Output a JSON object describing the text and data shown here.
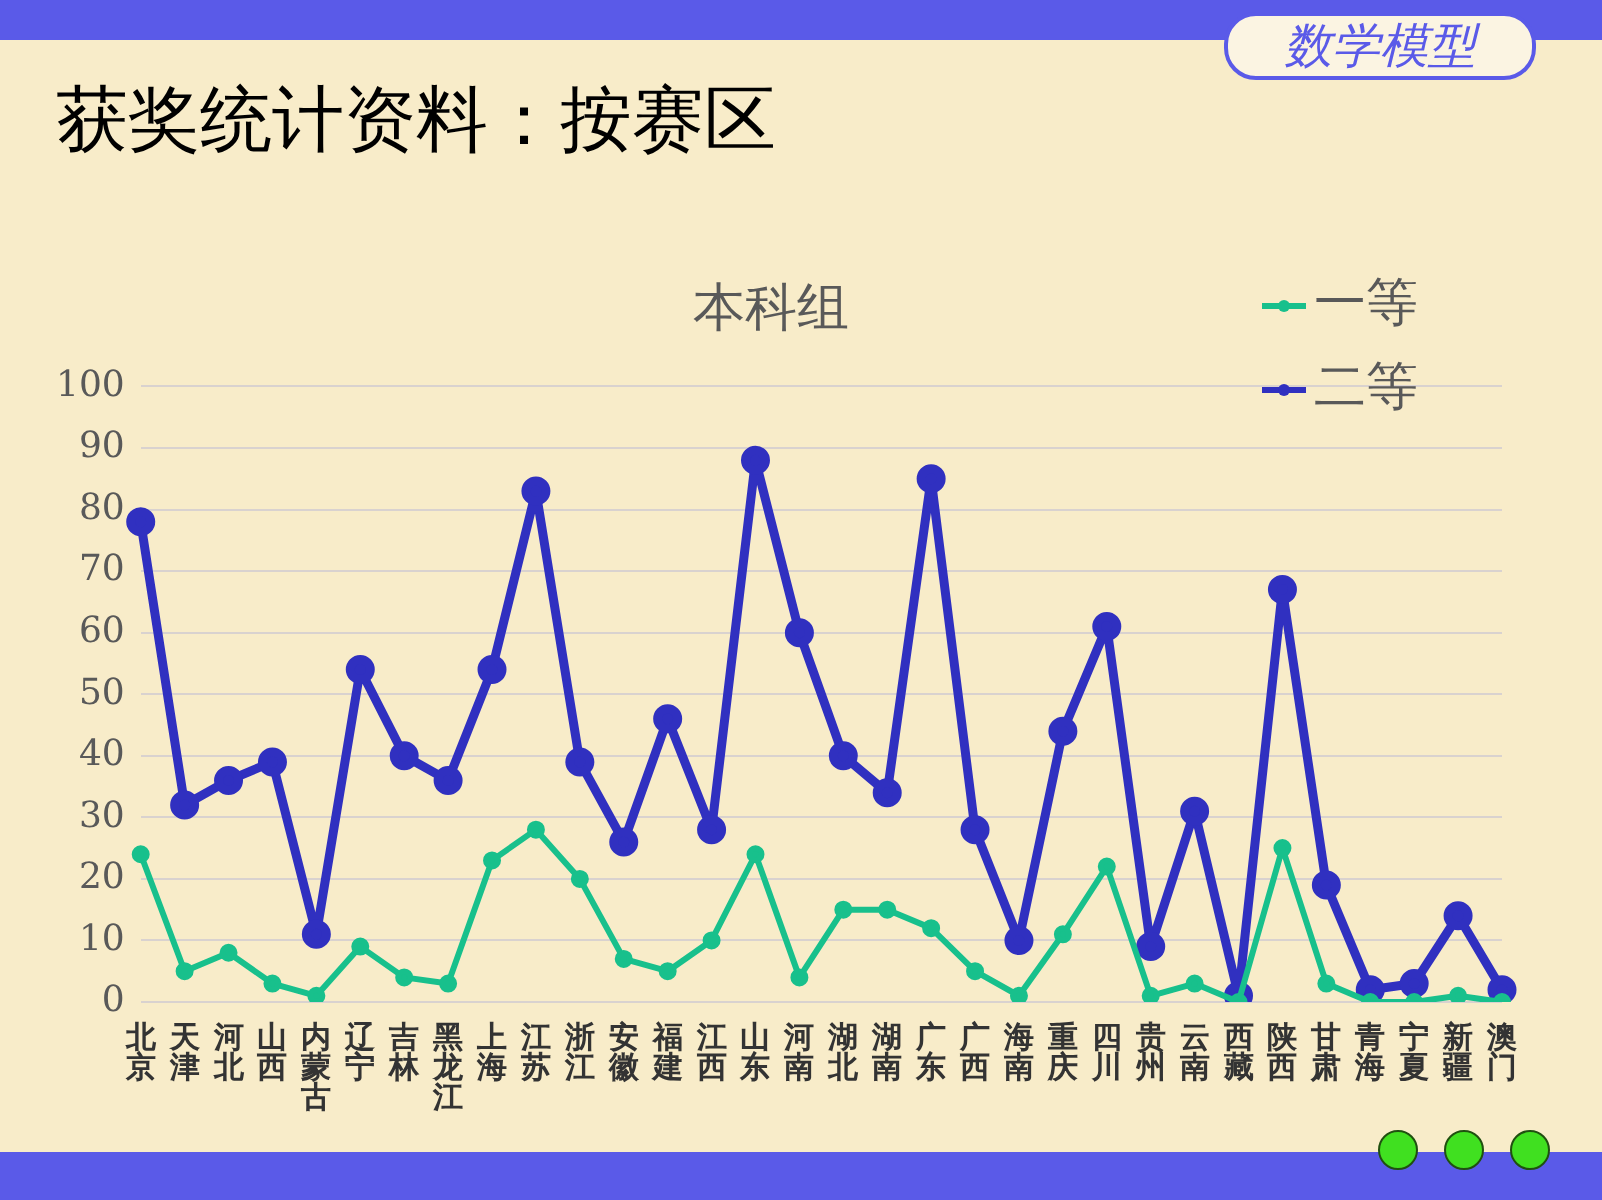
{
  "chart_data": {
    "type": "line",
    "title": "本科组",
    "annotations": [
      "获奖统计资料：按赛区",
      "数学模型"
    ],
    "categories": [
      "北京",
      "天津",
      "河北",
      "山西",
      "内蒙古",
      "辽宁",
      "吉林",
      "黑龙江",
      "上海",
      "江苏",
      "浙江",
      "安徽",
      "福建",
      "江西",
      "山东",
      "河南",
      "湖北",
      "湖南",
      "广东",
      "广西",
      "海南",
      "重庆",
      "四川",
      "贵州",
      "云南",
      "西藏",
      "陕西",
      "甘肃",
      "青海",
      "宁夏",
      "新疆",
      "澳门"
    ],
    "series": [
      {
        "name": "一等",
        "color": "#18c08c",
        "values": [
          24,
          5,
          8,
          3,
          1,
          9,
          4,
          3,
          23,
          28,
          20,
          7,
          5,
          10,
          24,
          4,
          15,
          15,
          12,
          5,
          1,
          11,
          22,
          1,
          3,
          0,
          25,
          3,
          0,
          0,
          1,
          0
        ]
      },
      {
        "name": "二等",
        "color": "#3030c0",
        "values": [
          78,
          32,
          36,
          39,
          11,
          54,
          40,
          36,
          54,
          83,
          39,
          26,
          46,
          28,
          88,
          60,
          40,
          34,
          85,
          28,
          10,
          44,
          61,
          9,
          31,
          1,
          67,
          19,
          2,
          3,
          14,
          2
        ]
      }
    ],
    "ylim": [
      0,
      100
    ],
    "yticks": [
      0,
      10,
      20,
      30,
      40,
      50,
      60,
      70,
      80,
      90,
      100
    ],
    "grid": "y",
    "legend": "top right",
    "marker": "circle",
    "line_style": "solid"
  }
}
